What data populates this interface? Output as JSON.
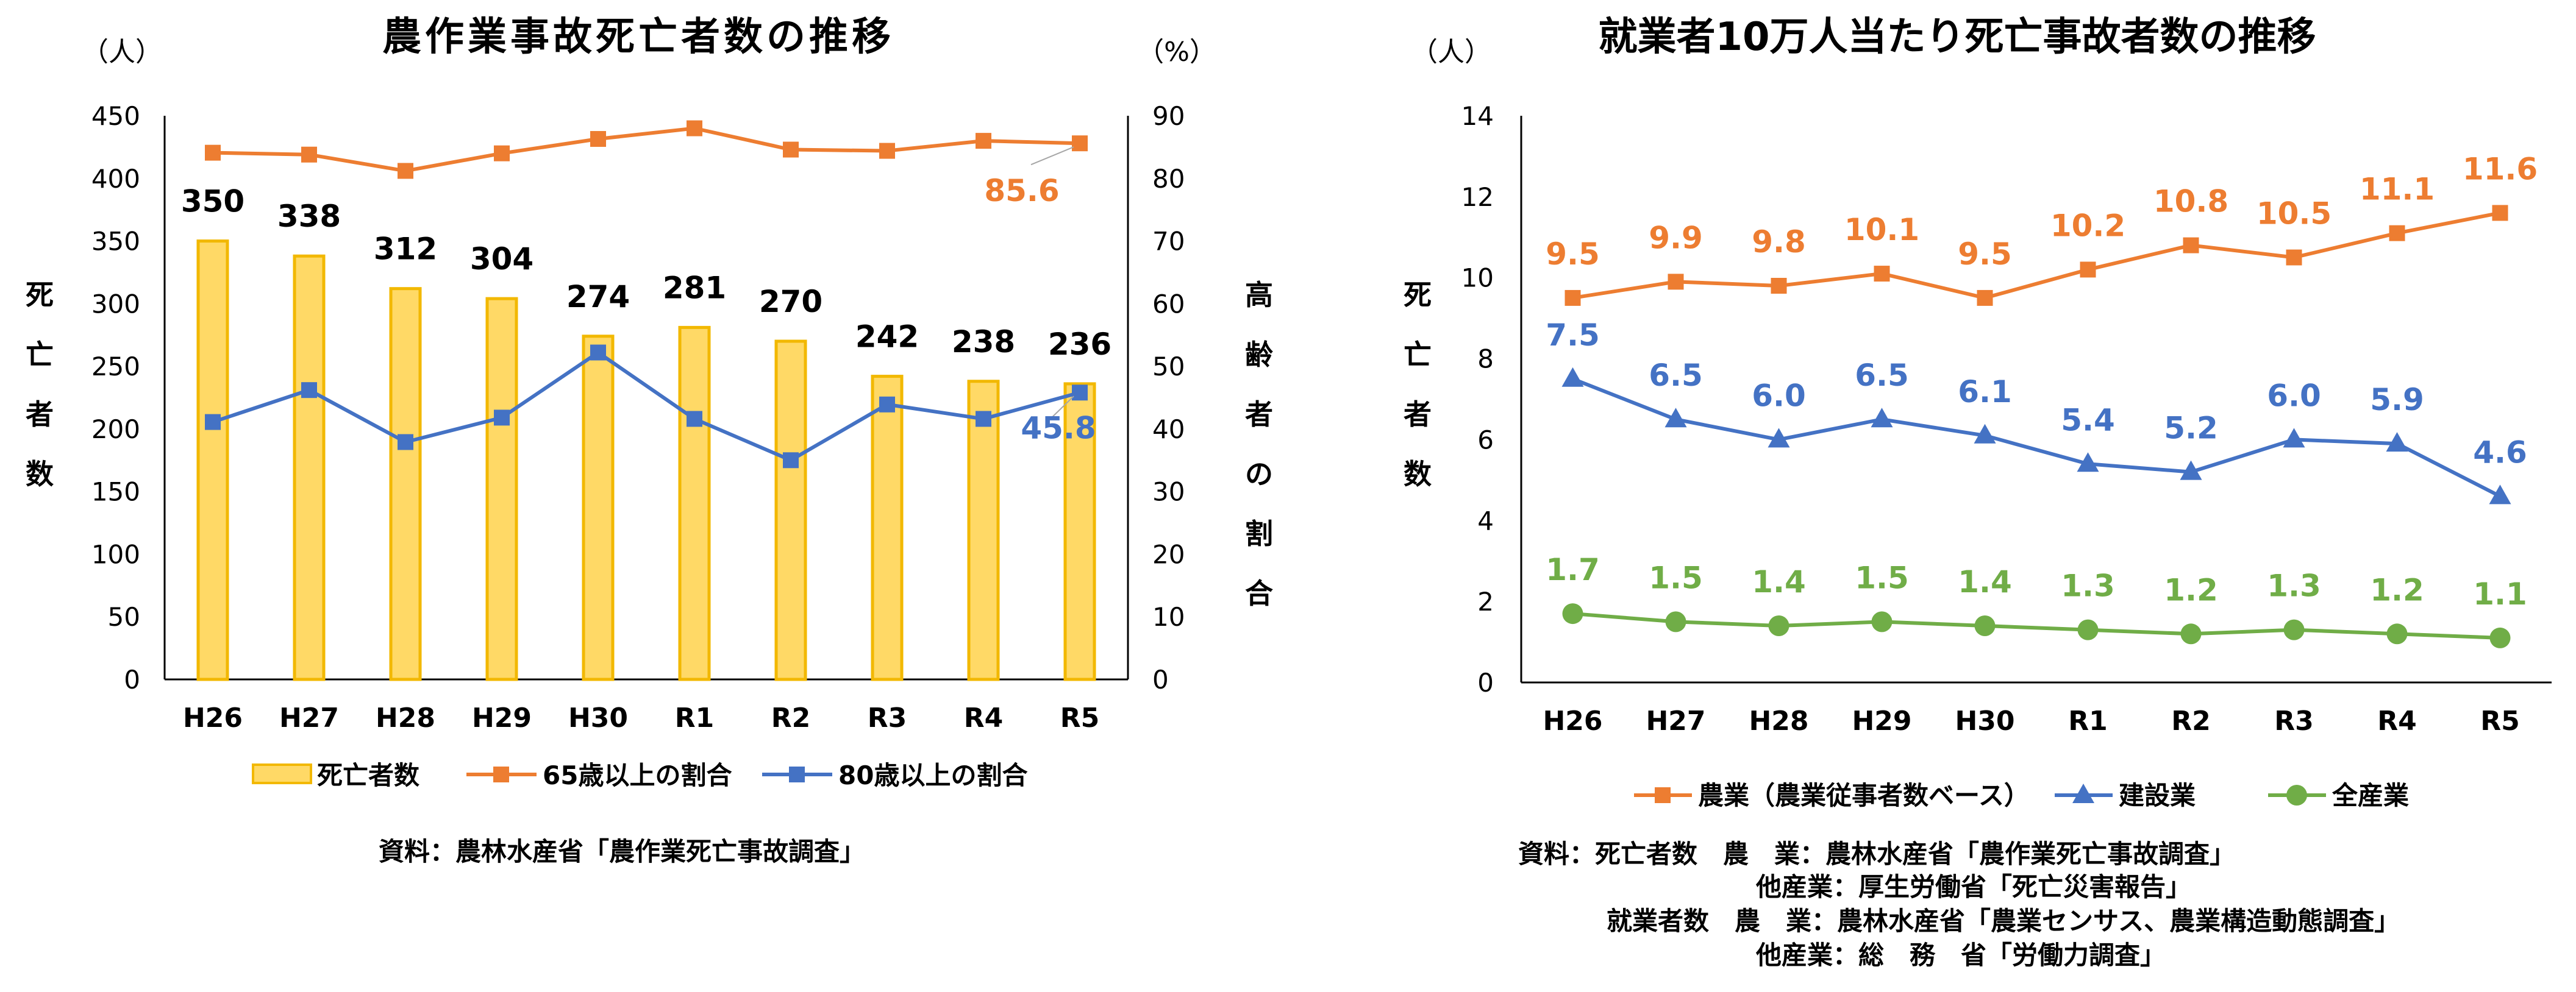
{
  "left_chart": {
    "title": "農作業事故死亡者数の推移",
    "y_unit_left": "（人）",
    "y_unit_right": "（%）",
    "y_axis_left_label": [
      "死",
      "亡",
      "者",
      "数"
    ],
    "y_axis_right_label": [
      "高",
      "齢",
      "者",
      "の",
      "割",
      "合"
    ],
    "source": "資料：農林水産省「農作業死亡事故調査」"
  },
  "right_chart": {
    "title": "就業者10万人当たり死亡事故者数の推移",
    "y_unit": "（人）",
    "y_axis_label": [
      "死",
      "亡",
      "者",
      "数"
    ],
    "source_lines": [
      "資料：死亡者数　農　業：農林水産省「農作業死亡事故調査」",
      "他産業：厚生労働省「死亡災害報告」",
      "就業者数　農　業：農林水産省「農業センサス、農業構造動態調査」",
      "他産業：総　務　省「労働力調査」"
    ]
  },
  "chart_data": [
    {
      "type": "bar",
      "title": "農作業事故死亡者数の推移",
      "categories": [
        "H26",
        "H27",
        "H28",
        "H29",
        "H30",
        "R1",
        "R2",
        "R3",
        "R4",
        "R5"
      ],
      "ylim": [
        0,
        450
      ],
      "yticks": [
        0,
        50,
        100,
        150,
        200,
        250,
        300,
        350,
        400,
        450
      ],
      "y2lim": [
        0,
        90
      ],
      "y2ticks": [
        0,
        10,
        20,
        30,
        40,
        50,
        60,
        70,
        80,
        90
      ],
      "grid": false,
      "legend_position": "bottom",
      "series": [
        {
          "name": "死亡者数",
          "kind": "bar",
          "axis": "left",
          "color": "#FFD966",
          "edge": "#F2B800",
          "values": [
            350,
            338,
            312,
            304,
            274,
            281,
            270,
            242,
            238,
            236
          ],
          "labels": [
            "350",
            "338",
            "312",
            "304",
            "274",
            "281",
            "270",
            "242",
            "238",
            "236"
          ]
        },
        {
          "name": "65歳以上の割合",
          "kind": "line",
          "axis": "right",
          "color": "#ED7D31",
          "marker": "square",
          "values": [
            84.1,
            83.8,
            81.2,
            84.0,
            86.3,
            88.0,
            84.6,
            84.4,
            86.0,
            85.6
          ],
          "end_label": "85.6"
        },
        {
          "name": "80歳以上の割合",
          "kind": "line",
          "axis": "right",
          "color": "#4472C4",
          "marker": "square",
          "values": [
            41.1,
            46.2,
            37.9,
            41.8,
            52.2,
            41.6,
            35.0,
            43.9,
            41.6,
            45.8
          ],
          "end_label": "45.8"
        }
      ]
    },
    {
      "type": "line",
      "title": "就業者10万人当たり死亡事故者数の推移",
      "categories": [
        "H26",
        "H27",
        "H28",
        "H29",
        "H30",
        "R1",
        "R2",
        "R3",
        "R4",
        "R5"
      ],
      "ylim": [
        0,
        14
      ],
      "yticks": [
        0,
        2,
        4,
        6,
        8,
        10,
        12,
        14
      ],
      "grid": false,
      "legend_position": "bottom",
      "series": [
        {
          "name": "農業（農業従事者数ベース）",
          "color": "#ED7D31",
          "marker": "square",
          "values": [
            9.5,
            9.9,
            9.8,
            10.1,
            9.5,
            10.2,
            10.8,
            10.5,
            11.1,
            11.6
          ],
          "labels": [
            "9.5",
            "9.9",
            "9.8",
            "10.1",
            "9.5",
            "10.2",
            "10.8",
            "10.5",
            "11.1",
            "11.6"
          ]
        },
        {
          "name": "建設業",
          "color": "#4472C4",
          "marker": "triangle",
          "values": [
            7.5,
            6.5,
            6.0,
            6.5,
            6.1,
            5.4,
            5.2,
            6.0,
            5.9,
            4.6
          ],
          "labels": [
            "7.5",
            "6.5",
            "6.0",
            "6.5",
            "6.1",
            "5.4",
            "5.2",
            "6.0",
            "5.9",
            "4.6"
          ]
        },
        {
          "name": "全産業",
          "color": "#70AD47",
          "marker": "circle",
          "values": [
            1.7,
            1.5,
            1.4,
            1.5,
            1.4,
            1.3,
            1.2,
            1.3,
            1.2,
            1.1
          ],
          "labels": [
            "1.7",
            "1.5",
            "1.4",
            "1.5",
            "1.4",
            "1.3",
            "1.2",
            "1.3",
            "1.2",
            "1.1"
          ]
        }
      ]
    }
  ]
}
